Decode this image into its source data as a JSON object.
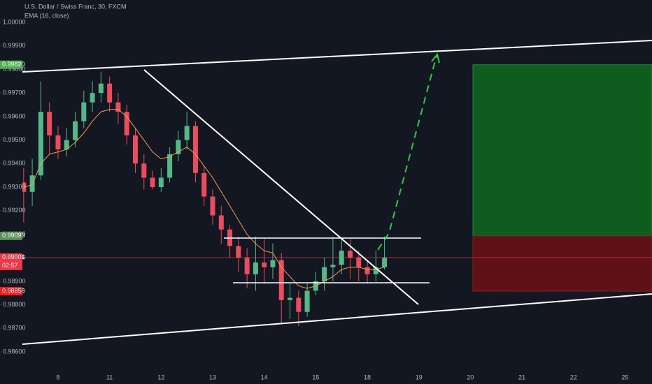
{
  "chart_data": {
    "type": "candlestick",
    "title": "U.S. Dollar / Swiss Franc, 30, FXCM",
    "categories": [
      null,
      null,
      null,
      null,
      "8",
      null,
      null,
      null,
      null,
      null,
      "11",
      null,
      null,
      null,
      null,
      null,
      "12",
      null,
      null,
      null,
      null,
      null,
      "13",
      null,
      null,
      null,
      null,
      null,
      "14",
      null,
      null,
      null,
      null,
      null,
      "15",
      null,
      null,
      null,
      null,
      null,
      "18",
      null,
      null,
      null,
      null,
      null,
      "19",
      null,
      null,
      null,
      null,
      null,
      "20",
      null,
      null,
      null,
      null,
      null,
      "21",
      null,
      null,
      null,
      null,
      null,
      "22",
      null,
      null,
      null,
      null,
      null,
      "25",
      null,
      null
    ],
    "open": [
      0.9932,
      0.9928,
      0.9935,
      0.9962,
      0.9952,
      0.9946,
      0.995,
      0.9958,
      0.9966,
      0.997,
      0.9974,
      0.9966,
      0.9962,
      0.9952,
      0.994,
      0.9934,
      0.993,
      0.9934,
      0.9944,
      0.995,
      0.9956,
      0.9936,
      0.9926,
      0.9918,
      0.9912,
      0.9905,
      0.99,
      0.9893,
      0.9898,
      0.9896,
      0.9899,
      0.9882,
      0.9883,
      0.9877,
      0.9886,
      0.989,
      0.9896,
      0.9897,
      0.9903,
      0.99,
      0.9896,
      0.9893,
      0.9896,
      null,
      null,
      null,
      null,
      null,
      null,
      null,
      null,
      null,
      null,
      null,
      null,
      null,
      null,
      null,
      null,
      null,
      null,
      null,
      null,
      null,
      null,
      null,
      null,
      null,
      null,
      null,
      null,
      null,
      null
    ],
    "high": [
      0.9938,
      0.9942,
      0.9975,
      0.9966,
      0.9956,
      0.9955,
      0.9962,
      0.9971,
      0.9975,
      0.9979,
      0.9977,
      0.997,
      0.9965,
      0.9955,
      0.9944,
      0.9937,
      0.9938,
      0.9947,
      0.9954,
      0.9962,
      0.9958,
      0.9939,
      0.9929,
      0.9922,
      0.9914,
      0.9909,
      0.9904,
      0.9909,
      0.9908,
      0.9906,
      0.9902,
      0.9889,
      0.9886,
      0.9889,
      0.9894,
      0.99,
      0.9909,
      0.9908,
      0.9908,
      0.9903,
      0.9899,
      0.9903,
      0.9909,
      null,
      null,
      null,
      null,
      null,
      null,
      null,
      null,
      null,
      null,
      null,
      null,
      null,
      null,
      null,
      null,
      null,
      null,
      null,
      null,
      null,
      null,
      null,
      null,
      null,
      null,
      null,
      null,
      null,
      null
    ],
    "low": [
      0.9915,
      0.9922,
      0.9933,
      0.9944,
      0.9942,
      0.9943,
      0.9947,
      0.9955,
      0.9962,
      0.9966,
      0.9962,
      0.9957,
      0.9948,
      0.9936,
      0.9929,
      0.9929,
      0.9928,
      0.9932,
      0.9941,
      0.9946,
      0.9932,
      0.9922,
      0.9914,
      0.9906,
      0.99,
      0.9894,
      0.9887,
      0.9886,
      0.9889,
      0.9891,
      0.9872,
      0.9874,
      0.9871,
      0.9875,
      0.9884,
      0.9886,
      0.989,
      0.9893,
      0.9891,
      0.989,
      0.9889,
      0.989,
      0.9895,
      null,
      null,
      null,
      null,
      null,
      null,
      null,
      null,
      null,
      null,
      null,
      null,
      null,
      null,
      null,
      null,
      null,
      null,
      null,
      null,
      null,
      null,
      null,
      null,
      null,
      null,
      null,
      null,
      null,
      null
    ],
    "close": [
      0.9928,
      0.9935,
      0.9962,
      0.9952,
      0.9946,
      0.995,
      0.9958,
      0.9966,
      0.997,
      0.9974,
      0.9966,
      0.9962,
      0.9952,
      0.994,
      0.9934,
      0.993,
      0.9934,
      0.9944,
      0.995,
      0.9956,
      0.9936,
      0.9926,
      0.9918,
      0.9912,
      0.9905,
      0.99,
      0.9893,
      0.9898,
      0.9896,
      0.9899,
      0.9882,
      0.9883,
      0.9877,
      0.9886,
      0.989,
      0.9896,
      0.9897,
      0.9903,
      0.99,
      0.9896,
      0.9893,
      0.9896,
      0.99,
      null,
      null,
      null,
      null,
      null,
      null,
      null,
      null,
      null,
      null,
      null,
      null,
      null,
      null,
      null,
      null,
      null,
      null,
      null,
      null,
      null,
      null,
      null,
      null,
      null,
      null,
      null,
      null,
      null,
      null
    ],
    "up_color": "#53b987",
    "down_color": "#eb4d5c",
    "series": [
      {
        "name": "EMA (16, close)",
        "color": "#f79a4d",
        "values": [
          0.993,
          0.9931,
          0.994,
          0.9944,
          0.9945,
          0.9946,
          0.9949,
          0.9953,
          0.9958,
          0.9962,
          0.9963,
          0.9963,
          0.996,
          0.9955,
          0.995,
          0.9945,
          0.9942,
          0.9943,
          0.9945,
          0.9947,
          0.9944,
          0.9939,
          0.9934,
          0.9928,
          0.9922,
          0.9916,
          0.991,
          0.9906,
          0.9903,
          0.9902,
          0.9896,
          0.9892,
          0.9888,
          0.9887,
          0.9888,
          0.989,
          0.9892,
          0.9895,
          0.9896,
          0.9896,
          0.9895,
          0.9895,
          0.9896,
          null,
          null,
          null,
          null,
          null,
          null,
          null,
          null,
          null,
          null,
          null,
          null,
          null,
          null,
          null,
          null,
          null,
          null,
          null,
          null,
          null,
          null,
          null,
          null,
          null,
          null,
          null,
          null,
          null,
          null
        ]
      }
    ],
    "ylim": [
      0.98523,
      1.00095
    ],
    "yticks": [
      {
        "value": 0.986,
        "label": "0.98600"
      },
      {
        "value": 0.987,
        "label": "0.98700"
      },
      {
        "value": 0.988,
        "label": "0.98800"
      },
      {
        "value": 0.989,
        "label": "0.98900"
      },
      {
        "value": 0.99,
        "label": "0.99000"
      },
      {
        "value": 0.991,
        "label": "0.99100"
      },
      {
        "value": 0.992,
        "label": "0.99200"
      },
      {
        "value": 0.993,
        "label": "0.99300"
      },
      {
        "value": 0.994,
        "label": "0.99400"
      },
      {
        "value": 0.995,
        "label": "0.99500"
      },
      {
        "value": 0.996,
        "label": "0.99600"
      },
      {
        "value": 0.997,
        "label": "0.99700"
      },
      {
        "value": 0.998,
        "label": "0.99800"
      },
      {
        "value": 0.999,
        "label": "0.99900"
      },
      {
        "value": 1.0,
        "label": "1.00000"
      }
    ],
    "grid": false,
    "price_labels": [
      {
        "value": 0.9982,
        "label": "0.99820",
        "color": "#4caf50"
      },
      {
        "value": 0.99093,
        "label": "0.99093",
        "color": "#5d8f5d"
      },
      {
        "value": 0.99001,
        "label": "0.99001",
        "color": "#f23645",
        "countdown": "02:57"
      },
      {
        "value": 0.98858,
        "label": "0.98858",
        "color": "#ff1a1a"
      }
    ]
  }
}
